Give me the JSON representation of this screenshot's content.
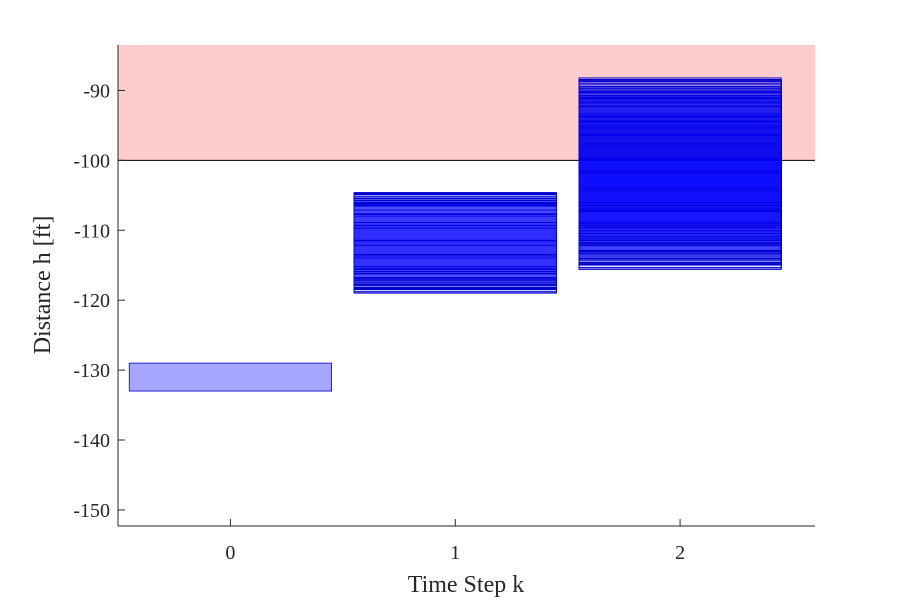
{
  "chart_data": {
    "type": "bar",
    "xlabel": "Time Step k",
    "ylabel": "Distance h [ft]",
    "xlim": [
      -0.5,
      2.6
    ],
    "ylim": [
      -152.3,
      -83.5
    ],
    "xticks": [
      0,
      1,
      2
    ],
    "yticks": [
      -150,
      -140,
      -130,
      -120,
      -110,
      -100,
      -90
    ],
    "unsafe_region": {
      "y_from": -100,
      "y_to": -83.5,
      "color": "#fdcccc",
      "edge_color": "#000000"
    },
    "reach_sets": [
      {
        "k": 0,
        "x_from": -0.45,
        "x_to": 0.45,
        "y_min": -133.0,
        "y_max": -129.0,
        "n_sets": 1
      },
      {
        "k": 1,
        "x_from": 0.55,
        "x_to": 1.45,
        "y_min": -119.0,
        "y_max": -104.6,
        "n_sets": 30
      },
      {
        "k": 2,
        "x_from": 1.55,
        "x_to": 2.45,
        "y_min": -115.6,
        "y_max": -88.2,
        "n_sets": 46
      }
    ],
    "grid": false,
    "legend": false,
    "set_fill_color": "#0000ff",
    "set_edge_color": "#0000cc",
    "axis_color": "#262626"
  }
}
